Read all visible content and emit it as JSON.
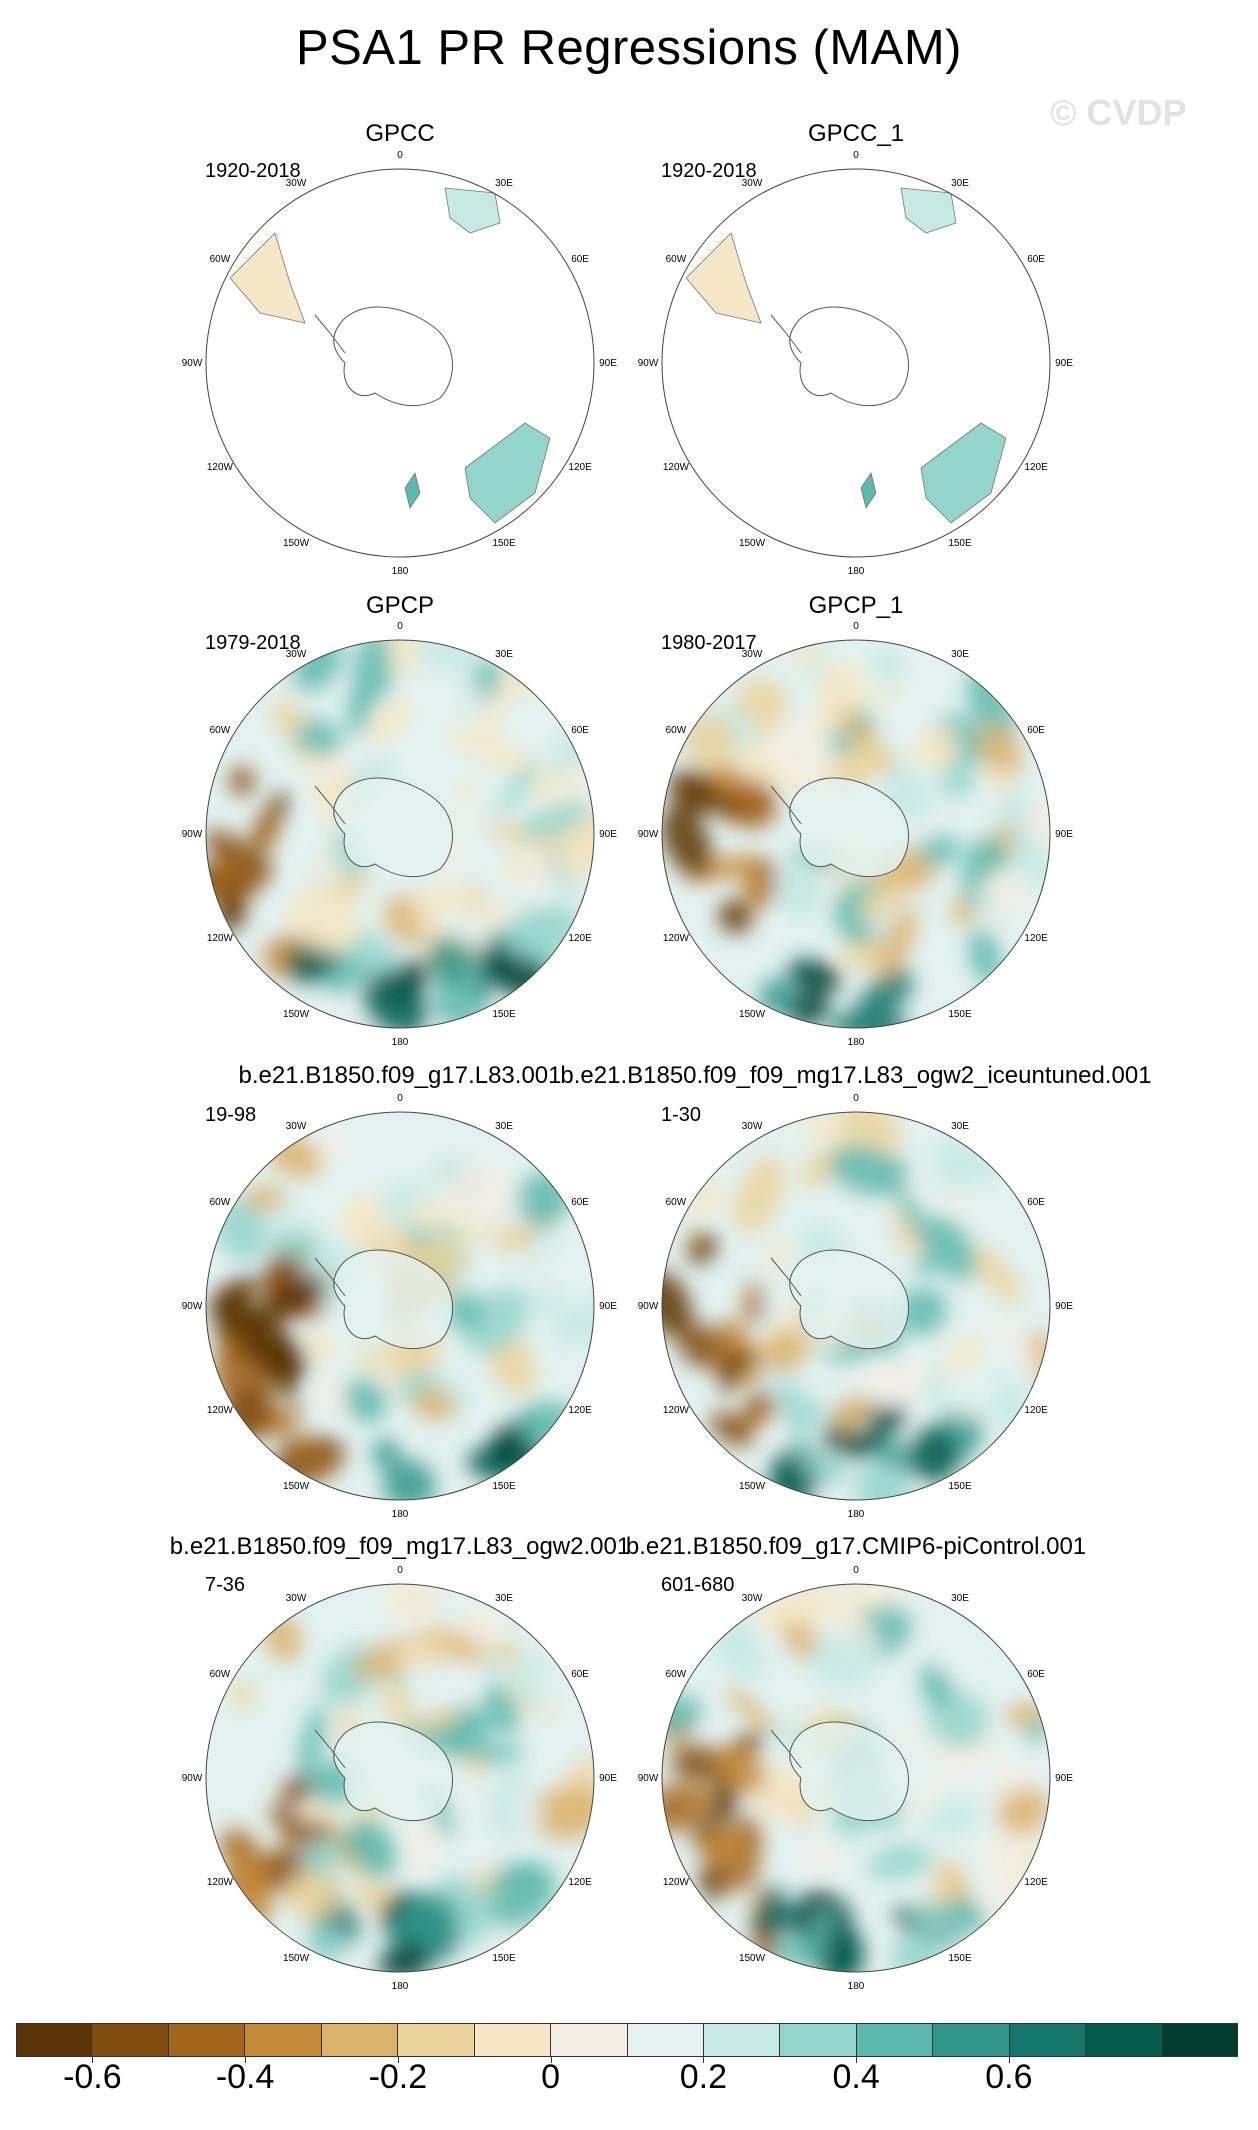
{
  "title": "PSA1 PR Regressions (MAM)",
  "watermark": "© CVDP",
  "panels": [
    {
      "title": "GPCC",
      "period": "1920-2018",
      "fill": "land"
    },
    {
      "title": "GPCC_1",
      "period": "1920-2018",
      "fill": "land"
    },
    {
      "title": "GPCP",
      "period": "1979-2018",
      "fill": "full"
    },
    {
      "title": "GPCP_1",
      "period": "1980-2017",
      "fill": "full"
    },
    {
      "title": "b.e21.B1850.f09_g17.L83.001",
      "period": "19-98",
      "fill": "full"
    },
    {
      "title": "b.e21.B1850.f09_f09_mg17.L83_ogw2_iceuntuned.001",
      "period": "1-30",
      "fill": "full"
    },
    {
      "title": "b.e21.B1850.f09_f09_mg17.L83_ogw2.001",
      "period": "7-36",
      "fill": "full"
    },
    {
      "title": "b.e21.B1850.f09_g17.CMIP6-piControl.001",
      "period": "601-680",
      "fill": "full"
    }
  ],
  "lon_labels": [
    "0",
    "30E",
    "60E",
    "90E",
    "120E",
    "150E",
    "180",
    "150W",
    "120W",
    "90W",
    "60W",
    "30W"
  ],
  "colorbar": {
    "colors": [
      "#5a3306",
      "#7f4b0f",
      "#a4661c",
      "#c48a39",
      "#dbb36b",
      "#ecd39c",
      "#f6e8c7",
      "#f4efe4",
      "#e3f2f0",
      "#c6e9e4",
      "#94d5cb",
      "#5eb9ad",
      "#32968c",
      "#14776d",
      "#045a4c",
      "#013c31"
    ],
    "labels": [
      "-0.6",
      "-0.4",
      "-0.2",
      "0",
      "0.2",
      "0.4",
      "0.6"
    ]
  }
}
